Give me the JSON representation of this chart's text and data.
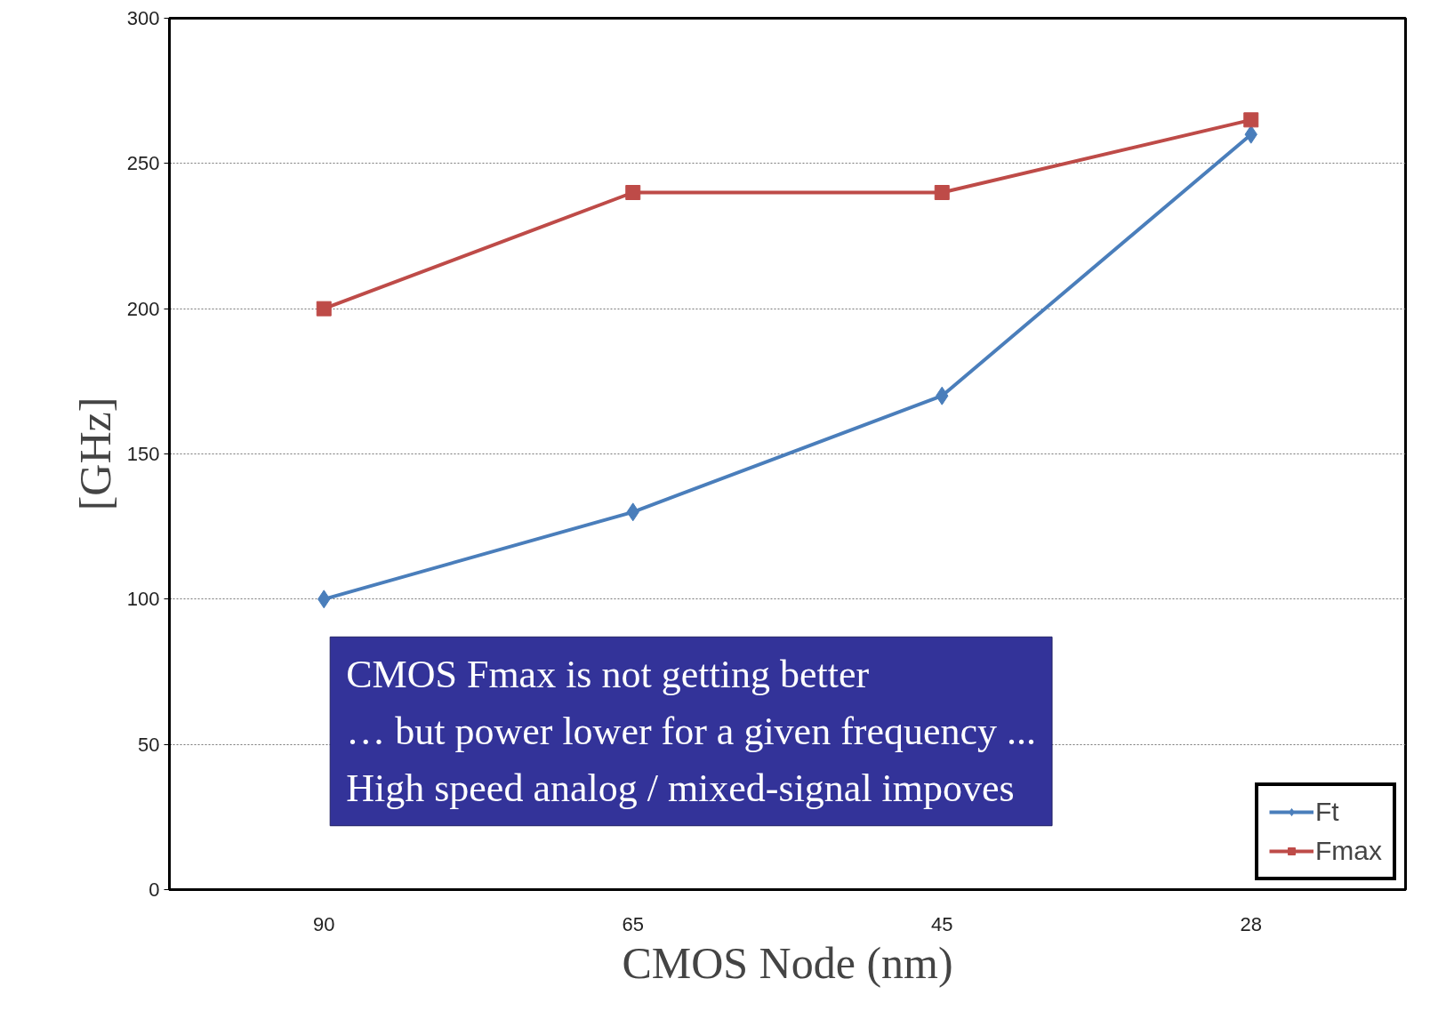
{
  "chart_data": {
    "type": "line",
    "xlabel": "CMOS Node (nm)",
    "ylabel": "[GHz]",
    "categories": [
      "90",
      "65",
      "45",
      "28"
    ],
    "series": [
      {
        "name": "Ft",
        "color": "#4a7ebb",
        "values": [
          100,
          130,
          170,
          260
        ],
        "marker": "diamond"
      },
      {
        "name": "Fmax",
        "color": "#be4b48",
        "values": [
          200,
          240,
          240,
          265
        ],
        "marker": "square"
      }
    ],
    "ylim": [
      0,
      300
    ],
    "yticks": [
      0,
      50,
      100,
      150,
      200,
      250,
      300
    ],
    "grid": "y",
    "legend": "bottom right",
    "line_style": "solid",
    "annotations": [
      "CMOS Fmax is not getting better",
      "… but power lower for a given frequency ...",
      "High speed analog / mixed-signal impoves"
    ]
  }
}
